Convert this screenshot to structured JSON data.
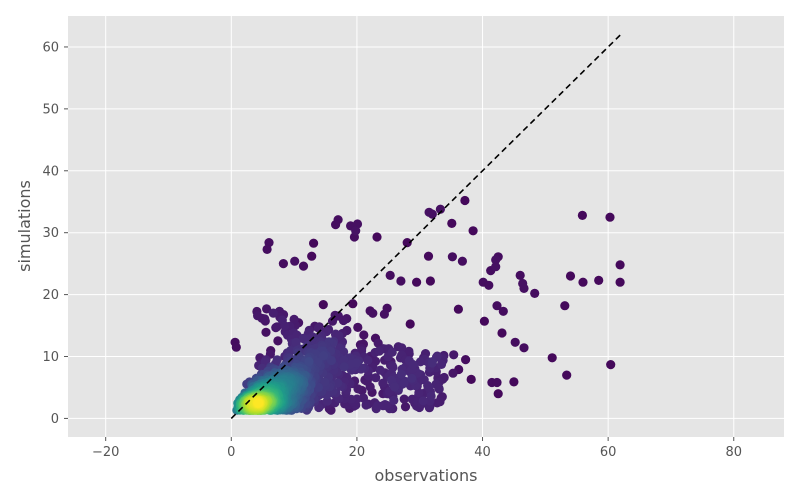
{
  "chart_data": {
    "type": "scatter",
    "title": "",
    "xlabel": "observations",
    "ylabel": "simulations",
    "xlim": [
      -26,
      88
    ],
    "ylim": [
      -3,
      65
    ],
    "x_ticks": [
      -20,
      0,
      20,
      40,
      60,
      80
    ],
    "y_ticks": [
      0,
      10,
      20,
      30,
      40,
      50,
      60
    ],
    "x_tick_labels": [
      "−20",
      "0",
      "20",
      "40",
      "60",
      "80"
    ],
    "y_tick_labels": [
      "0",
      "10",
      "20",
      "30",
      "40",
      "50",
      "60"
    ],
    "grid": true,
    "background": "#e5e5e5",
    "grid_color": "#ffffff",
    "colormap": "viridis",
    "color_encodes": "point density",
    "reference_line": {
      "style": "dashed",
      "color": "#000000",
      "x": [
        0,
        62
      ],
      "y": [
        0,
        62
      ]
    },
    "outlier_points": [
      [
        38.5,
        30.3
      ],
      [
        37.2,
        35.2
      ],
      [
        33.3,
        33.8
      ],
      [
        31.5,
        33.3
      ],
      [
        32.0,
        33.0
      ],
      [
        35.1,
        31.5
      ],
      [
        42.1,
        25.6
      ],
      [
        42.5,
        26.1
      ],
      [
        46.0,
        23.1
      ],
      [
        46.4,
        21.8
      ],
      [
        46.6,
        21.0
      ],
      [
        48.3,
        20.2
      ],
      [
        55.9,
        32.8
      ],
      [
        60.3,
        32.5
      ],
      [
        61.9,
        24.8
      ],
      [
        61.9,
        22.0
      ],
      [
        58.5,
        22.3
      ],
      [
        56.0,
        22.0
      ],
      [
        54.0,
        23.0
      ],
      [
        53.1,
        18.2
      ],
      [
        51.1,
        9.8
      ],
      [
        53.4,
        7.0
      ],
      [
        60.4,
        8.7
      ],
      [
        45.0,
        5.9
      ],
      [
        42.5,
        4.0
      ],
      [
        41.5,
        5.8
      ],
      [
        42.3,
        5.8
      ],
      [
        46.6,
        11.4
      ],
      [
        45.2,
        12.3
      ],
      [
        43.1,
        13.8
      ],
      [
        40.3,
        15.7
      ],
      [
        40.1,
        22.0
      ],
      [
        41.0,
        21.5
      ],
      [
        42.1,
        24.5
      ],
      [
        38.2,
        6.3
      ],
      [
        35.3,
        7.3
      ],
      [
        36.2,
        7.9
      ],
      [
        37.3,
        9.5
      ],
      [
        31.7,
        4.3
      ],
      [
        30.3,
        2.4
      ],
      [
        29.5,
        2.0
      ],
      [
        28.8,
        3.1
      ],
      [
        27.5,
        5.7
      ],
      [
        26.0,
        5.1
      ],
      [
        31.4,
        26.2
      ],
      [
        28.0,
        28.4
      ],
      [
        35.2,
        26.1
      ],
      [
        36.8,
        25.4
      ],
      [
        31.7,
        22.2
      ],
      [
        29.5,
        22.0
      ],
      [
        27.0,
        22.2
      ],
      [
        25.3,
        23.1
      ],
      [
        23.2,
        29.3
      ],
      [
        19.8,
        30.3
      ],
      [
        19.0,
        31.1
      ],
      [
        17.0,
        32.1
      ],
      [
        16.6,
        31.3
      ],
      [
        19.6,
        29.3
      ],
      [
        20.1,
        31.4
      ],
      [
        6.0,
        28.4
      ],
      [
        5.7,
        27.3
      ],
      [
        8.3,
        25.0
      ],
      [
        10.1,
        25.4
      ],
      [
        11.5,
        24.6
      ],
      [
        12.8,
        26.2
      ],
      [
        13.1,
        28.3
      ],
      [
        0.6,
        12.3
      ],
      [
        0.8,
        11.5
      ],
      [
        42.3,
        18.2
      ],
      [
        43.3,
        17.3
      ]
    ]
  }
}
